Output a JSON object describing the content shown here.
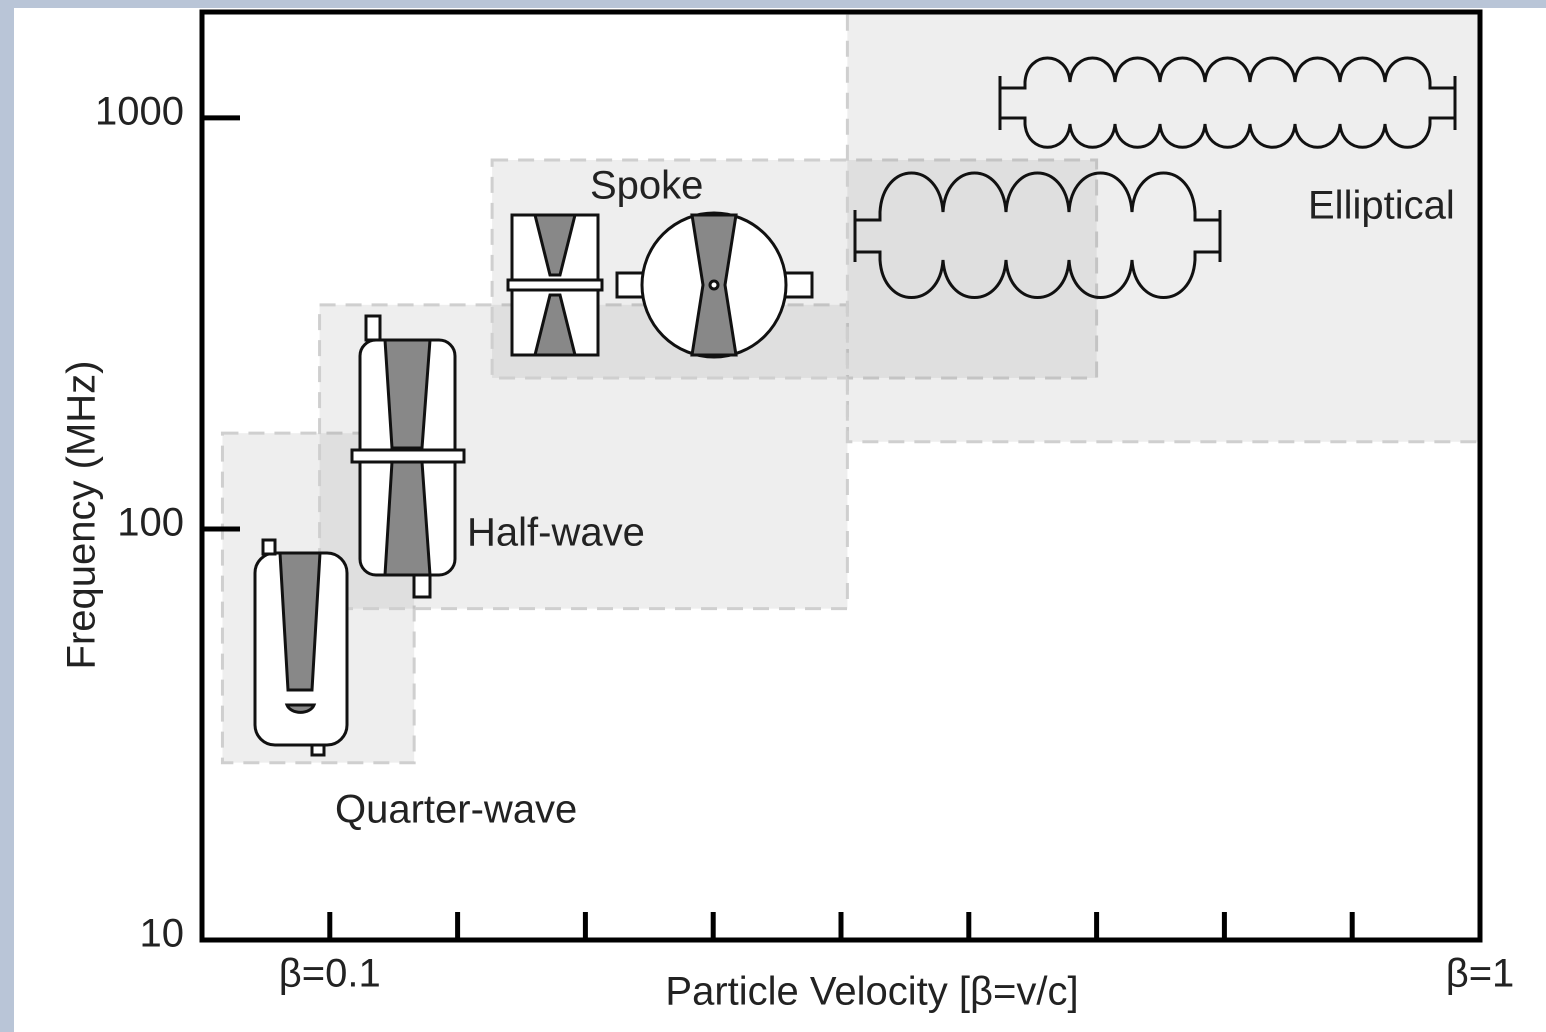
{
  "chart_data": {
    "type": "region",
    "y_label": "Frequency (MHz)",
    "x_label": "Particle Velocity [β=v/c]",
    "xlim": [
      0,
      1
    ],
    "xticks": [
      {
        "value": 0.1,
        "label": "β=0.1"
      },
      {
        "value": 1,
        "label": "β=1"
      }
    ],
    "xminorticks": [
      0.2,
      0.3,
      0.4,
      0.5,
      0.6,
      0.7,
      0.8,
      0.9
    ],
    "ylim": [
      10,
      1810
    ],
    "yticks": [
      10,
      100,
      1000
    ],
    "log_y": true,
    "color": "#888888",
    "regions": [
      {
        "name": "Quarter-wave",
        "x": [
          0.016,
          0.166
        ],
        "y": [
          27,
          171
        ]
      },
      {
        "name": "Half-wave",
        "x": [
          0.092,
          0.505
        ],
        "y": [
          64,
          351
        ]
      },
      {
        "name": "Spoke",
        "x": [
          0.227,
          0.7
        ],
        "y": [
          233,
          790
        ]
      },
      {
        "name": "Elliptical",
        "x": [
          0.505,
          1
        ],
        "y": [
          163,
          1810
        ]
      }
    ]
  }
}
